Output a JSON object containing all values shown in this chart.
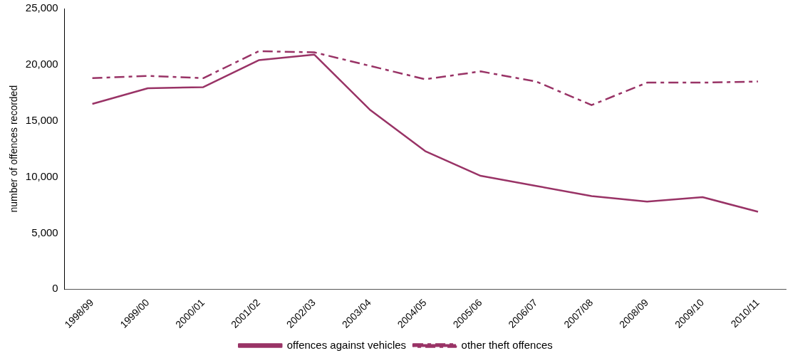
{
  "chart_data": {
    "type": "line",
    "ylabel": "number of offences recorded",
    "categories": [
      "1998/99",
      "1999/00",
      "2000/01",
      "2001/02",
      "2002/03",
      "2003/04",
      "2004/05",
      "2005/06",
      "2006/07",
      "2007/08",
      "2008/09",
      "2009/10",
      "2010/11"
    ],
    "series": [
      {
        "name": "offences against vehicles",
        "color": "#993366",
        "line_style": "solid",
        "values": [
          16500,
          17900,
          18000,
          20400,
          20900,
          16000,
          12300,
          10100,
          9200,
          8300,
          7800,
          8200,
          6900
        ]
      },
      {
        "name": "other theft offences",
        "color": "#993366",
        "line_style": "dashed",
        "values": [
          18800,
          19000,
          18800,
          21200,
          21100,
          19900,
          18700,
          19400,
          18500,
          16400,
          18400,
          18400,
          18500
        ]
      }
    ],
    "ylim": [
      0,
      25000
    ],
    "yticks": [
      0,
      {
        "value": 5000,
        "label": "5,000"
      },
      {
        "value": 10000,
        "label": "10,000"
      },
      {
        "value": 15000,
        "label": "15,000"
      },
      {
        "value": 20000,
        "label": "20,000"
      },
      {
        "value": 25000,
        "label": "25,000"
      }
    ],
    "grid": false,
    "legend": "bottom",
    "marker": "none"
  }
}
